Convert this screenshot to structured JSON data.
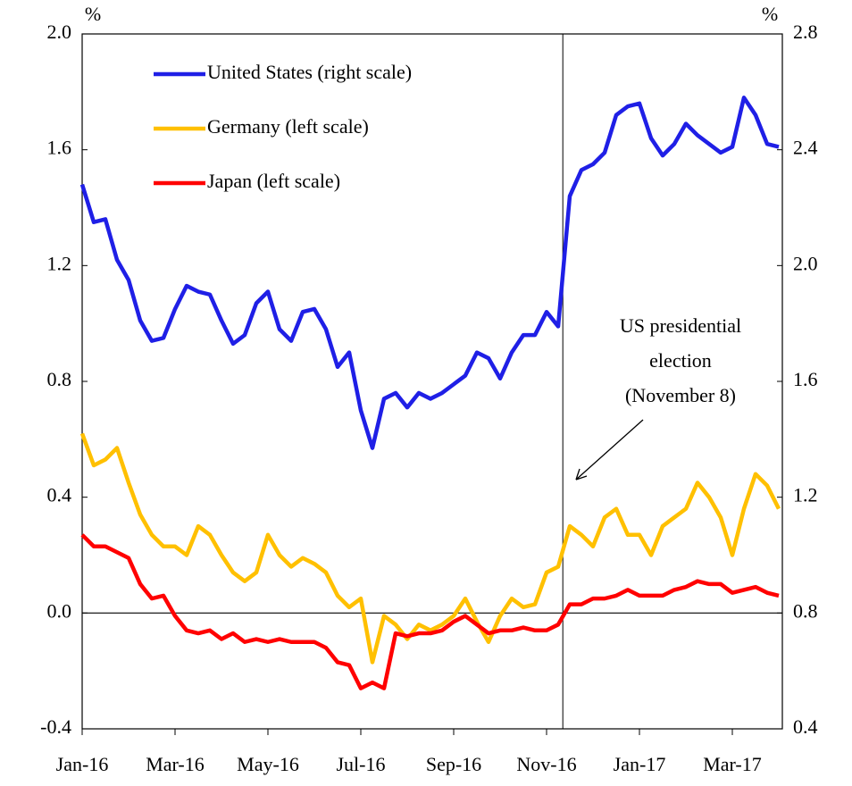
{
  "chart_data": {
    "type": "line",
    "y_label": "%",
    "y2_label": "%",
    "annotation": [
      "US presidential",
      "election",
      "(November 8)"
    ],
    "categories": [
      "Jan-16",
      null,
      null,
      null,
      null,
      null,
      null,
      null,
      "Mar-16",
      null,
      null,
      null,
      null,
      null,
      null,
      null,
      "May-16",
      null,
      null,
      null,
      null,
      null,
      null,
      null,
      "Jul-16",
      null,
      null,
      null,
      null,
      null,
      null,
      null,
      "Sep-16",
      null,
      null,
      null,
      null,
      null,
      null,
      null,
      "Nov-16",
      null,
      null,
      null,
      null,
      null,
      null,
      null,
      "Jan-17",
      null,
      null,
      null,
      null,
      null,
      null,
      null,
      "Mar-17",
      null,
      null,
      null,
      null
    ],
    "series": [
      {
        "name": "United States (right scale)",
        "color": "#1f1fe6",
        "axis": "y2",
        "values": [
          2.28,
          2.15,
          2.16,
          2.02,
          1.95,
          1.81,
          1.74,
          1.75,
          1.85,
          1.93,
          1.91,
          1.9,
          1.81,
          1.73,
          1.76,
          1.87,
          1.91,
          1.78,
          1.74,
          1.84,
          1.85,
          1.78,
          1.65,
          1.7,
          1.5,
          1.37,
          1.54,
          1.56,
          1.51,
          1.56,
          1.54,
          1.56,
          1.59,
          1.62,
          1.7,
          1.68,
          1.61,
          1.7,
          1.76,
          1.76,
          1.84,
          1.79,
          2.24,
          2.33,
          2.35,
          2.39,
          2.52,
          2.55,
          2.56,
          2.44,
          2.38,
          2.42,
          2.49,
          2.45,
          2.42,
          2.39,
          2.41,
          2.58,
          2.52,
          2.42,
          2.41
        ]
      },
      {
        "name": "Germany (left scale)",
        "color": "#ffc000",
        "values": [
          0.62,
          0.51,
          0.53,
          0.57,
          0.45,
          0.34,
          0.27,
          0.23,
          0.23,
          0.2,
          0.3,
          0.27,
          0.2,
          0.14,
          0.11,
          0.14,
          0.27,
          0.2,
          0.16,
          0.19,
          0.17,
          0.14,
          0.06,
          0.02,
          0.05,
          -0.17,
          -0.01,
          -0.04,
          -0.09,
          -0.04,
          -0.06,
          -0.04,
          -0.01,
          0.05,
          -0.03,
          -0.1,
          -0.01,
          0.05,
          0.02,
          0.03,
          0.14,
          0.16,
          0.3,
          0.27,
          0.23,
          0.33,
          0.36,
          0.27,
          0.27,
          0.2,
          0.3,
          0.33,
          0.36,
          0.45,
          0.4,
          0.33,
          0.2,
          0.36,
          0.48,
          0.44,
          0.36
        ]
      },
      {
        "name": "Japan (left scale)",
        "color": "#ff0000",
        "values": [
          0.27,
          0.23,
          0.23,
          0.21,
          0.19,
          0.1,
          0.05,
          0.06,
          -0.01,
          -0.06,
          -0.07,
          -0.06,
          -0.09,
          -0.07,
          -0.1,
          -0.09,
          -0.1,
          -0.09,
          -0.1,
          -0.1,
          -0.1,
          -0.12,
          -0.17,
          -0.18,
          -0.26,
          -0.24,
          -0.26,
          -0.07,
          -0.08,
          -0.07,
          -0.07,
          -0.06,
          -0.03,
          -0.01,
          -0.04,
          -0.07,
          -0.06,
          -0.06,
          -0.05,
          -0.06,
          -0.06,
          -0.04,
          0.03,
          0.03,
          0.05,
          0.05,
          0.06,
          0.08,
          0.06,
          0.06,
          0.06,
          0.08,
          0.09,
          0.11,
          0.1,
          0.1,
          0.07,
          0.08,
          0.09,
          0.07,
          0.06
        ]
      }
    ],
    "ylim": [
      -0.4,
      2.0
    ],
    "yticks": [
      -0.4,
      {
        "value": 0,
        "label": "0.0"
      },
      0.4,
      0.8,
      1.2,
      1.6,
      {
        "value": 2,
        "label": "2.0"
      }
    ],
    "y2lim": [
      0.4,
      2.8
    ],
    "y2ticks": [
      0.4,
      0.8,
      1.2,
      1.6,
      {
        "value": 2,
        "label": "2.0"
      },
      2.4,
      2.8
    ],
    "legend": "upper left"
  }
}
